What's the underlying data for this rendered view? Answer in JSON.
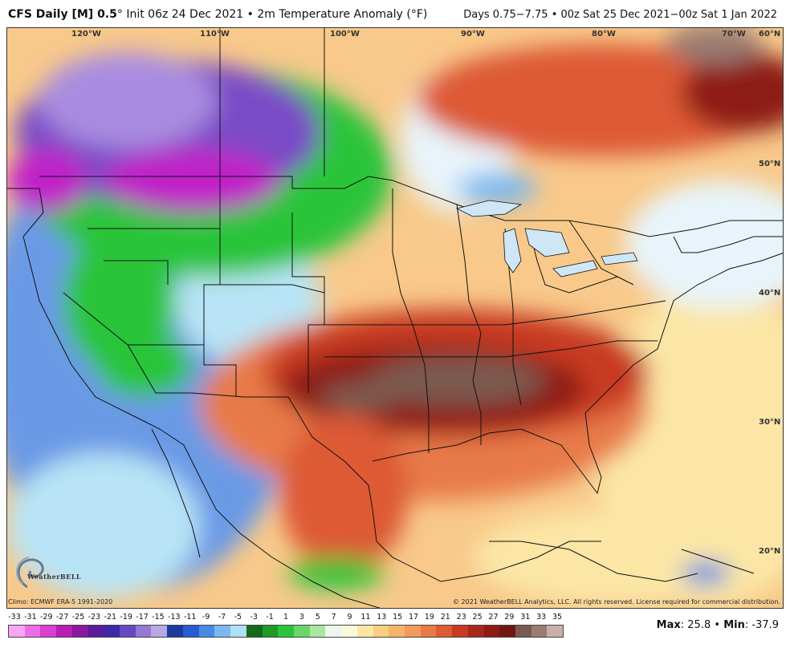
{
  "header": {
    "model": "CFS Daily [M] 0.5",
    "degree": "°",
    "init": "Init 06z 24 Dec 2021",
    "bullet": "•",
    "field": "2m Temperature Anomaly (°F)",
    "valid": "Days 0.75−7.75 • 00z Sat 25 Dec 2021−00z Sat 1 Jan 2022"
  },
  "map": {
    "longitude_labels": [
      "120°W",
      "110°W",
      "100°W",
      "90°W",
      "80°W",
      "70°W",
      "60°N"
    ],
    "latitude_labels": [
      "50°N",
      "40°N",
      "30°N",
      "20°N"
    ],
    "colors": {
      "deep_purple": "#c020c8",
      "purple": "#7a4cc6",
      "lavender": "#a98ce0",
      "blue": "#3a6ad8",
      "green": "#2cc43a",
      "light_green": "#8fe08a",
      "light_blue": "#b8e4f6",
      "white": "#f4f8fb",
      "pale_yellow": "#fbe6a6",
      "orange": "#f19a5c",
      "red": "#d9482a",
      "dark_red": "#8e1a12",
      "brown": "#7a5a50"
    }
  },
  "footer": {
    "climo": "Climo: ECMWF ERA-5 1991-2020",
    "copyright": "© 2021 WeatherBELL Analytics, LLC. All rights reserved. License required for commercial distribution.",
    "logo_text": "WeatherBELL"
  },
  "colorbar": {
    "labels": [
      "-33",
      "-31",
      "-29",
      "-27",
      "-25",
      "-23",
      "-21",
      "-19",
      "-17",
      "-15",
      "-13",
      "-11",
      "-9",
      "-7",
      "-5",
      "-3",
      "-1",
      "1",
      "3",
      "5",
      "7",
      "9",
      "11",
      "13",
      "15",
      "17",
      "19",
      "21",
      "23",
      "25",
      "27",
      "29",
      "31",
      "33",
      "35"
    ],
    "colors": [
      "#f7a6f2",
      "#ef6ce8",
      "#d83ed0",
      "#b520b0",
      "#8a18a0",
      "#5a1a9a",
      "#3c28a8",
      "#6848c0",
      "#9478d4",
      "#b8a8e4",
      "#1a3aa0",
      "#2a5ad0",
      "#4a8ae4",
      "#7ab8f0",
      "#aee0f8",
      "#136a1a",
      "#1e9a28",
      "#2cc43a",
      "#6ad66a",
      "#a8e8a0",
      "#eaf6ee",
      "#fdf8dc",
      "#fbe6a6",
      "#f8cf80",
      "#f5b46a",
      "#f19a5c",
      "#e87a48",
      "#dd5a34",
      "#c83a22",
      "#a8261a",
      "#8e1a12",
      "#6e1810",
      "#7a5a50",
      "#9a7c72",
      "#c8b0a8"
    ]
  },
  "stats": {
    "max_label": "Max",
    "max_value": "25.8",
    "sep": "•",
    "min_label": "Min",
    "min_value": "-37.9"
  }
}
